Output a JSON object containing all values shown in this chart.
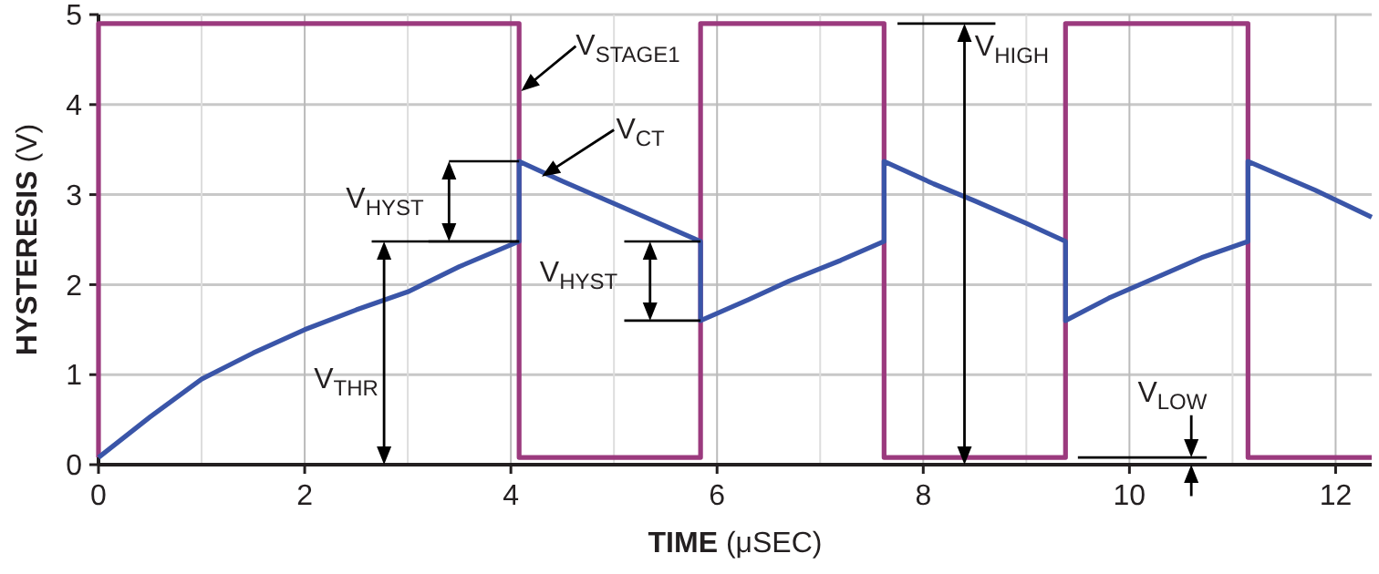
{
  "chart_data": {
    "type": "line",
    "xlabel": "TIME (μSEC)",
    "ylabel": "HYSTERESIS (V)",
    "xlim": [
      0,
      12.35
    ],
    "ylim": [
      0,
      5
    ],
    "xticks": [
      0,
      2,
      4,
      6,
      8,
      10,
      12
    ],
    "yticks": [
      0,
      1,
      2,
      3,
      4,
      5
    ],
    "grid": true,
    "legend": false,
    "marker": "none",
    "line_style": "solid",
    "series": [
      {
        "color": "#9b3a7e",
        "type": "step",
        "x": [
          0,
          0,
          4.08,
          4.08,
          5.84,
          5.84,
          7.62,
          7.62,
          9.38,
          9.38,
          11.15,
          11.15,
          12.35
        ],
        "values": [
          0.08,
          4.9,
          4.9,
          0.08,
          0.08,
          4.9,
          4.9,
          0.08,
          0.08,
          4.9,
          4.9,
          0.08,
          0.08
        ]
      },
      {
        "color": "#3a55a8",
        "x": [
          0,
          0.5,
          1,
          1.5,
          2,
          2.5,
          3,
          3.5,
          4.08,
          4.08,
          4.5,
          5,
          5.4,
          5.84,
          5.84,
          6.3,
          6.7,
          7.2,
          7.62,
          7.62,
          8.1,
          8.5,
          9,
          9.38,
          9.38,
          9.8,
          10.3,
          10.7,
          11.15,
          11.15,
          11.8,
          12.35
        ],
        "values": [
          0.08,
          0.53,
          0.95,
          1.24,
          1.5,
          1.72,
          1.92,
          2.2,
          2.48,
          3.37,
          3.15,
          2.9,
          2.7,
          2.48,
          1.6,
          1.83,
          2.04,
          2.27,
          2.48,
          3.37,
          3.12,
          2.93,
          2.68,
          2.48,
          1.6,
          1.85,
          2.1,
          2.3,
          2.48,
          3.37,
          3.05,
          2.75
        ]
      }
    ],
    "annotations": [
      {
        "text": "V$_{STAGE1}$",
        "x": 4.1,
        "y": 4.15
      },
      {
        "text": "V$_{CT}$",
        "x": 4.3,
        "y": 3.2
      },
      {
        "text": "V$_{HYST}$",
        "x": 4.08,
        "y": 2.48
      },
      {
        "text": "V$_{HYST}$",
        "x": 5.84,
        "y": 1.6
      },
      "V$_{THR}$",
      {
        "text": "V$_{HIGH}$",
        "x": 7.62,
        "y": 4.9
      },
      {
        "text": "V$_{LOW}$",
        "x": 9.38,
        "y": 0.08
      }
    ]
  }
}
